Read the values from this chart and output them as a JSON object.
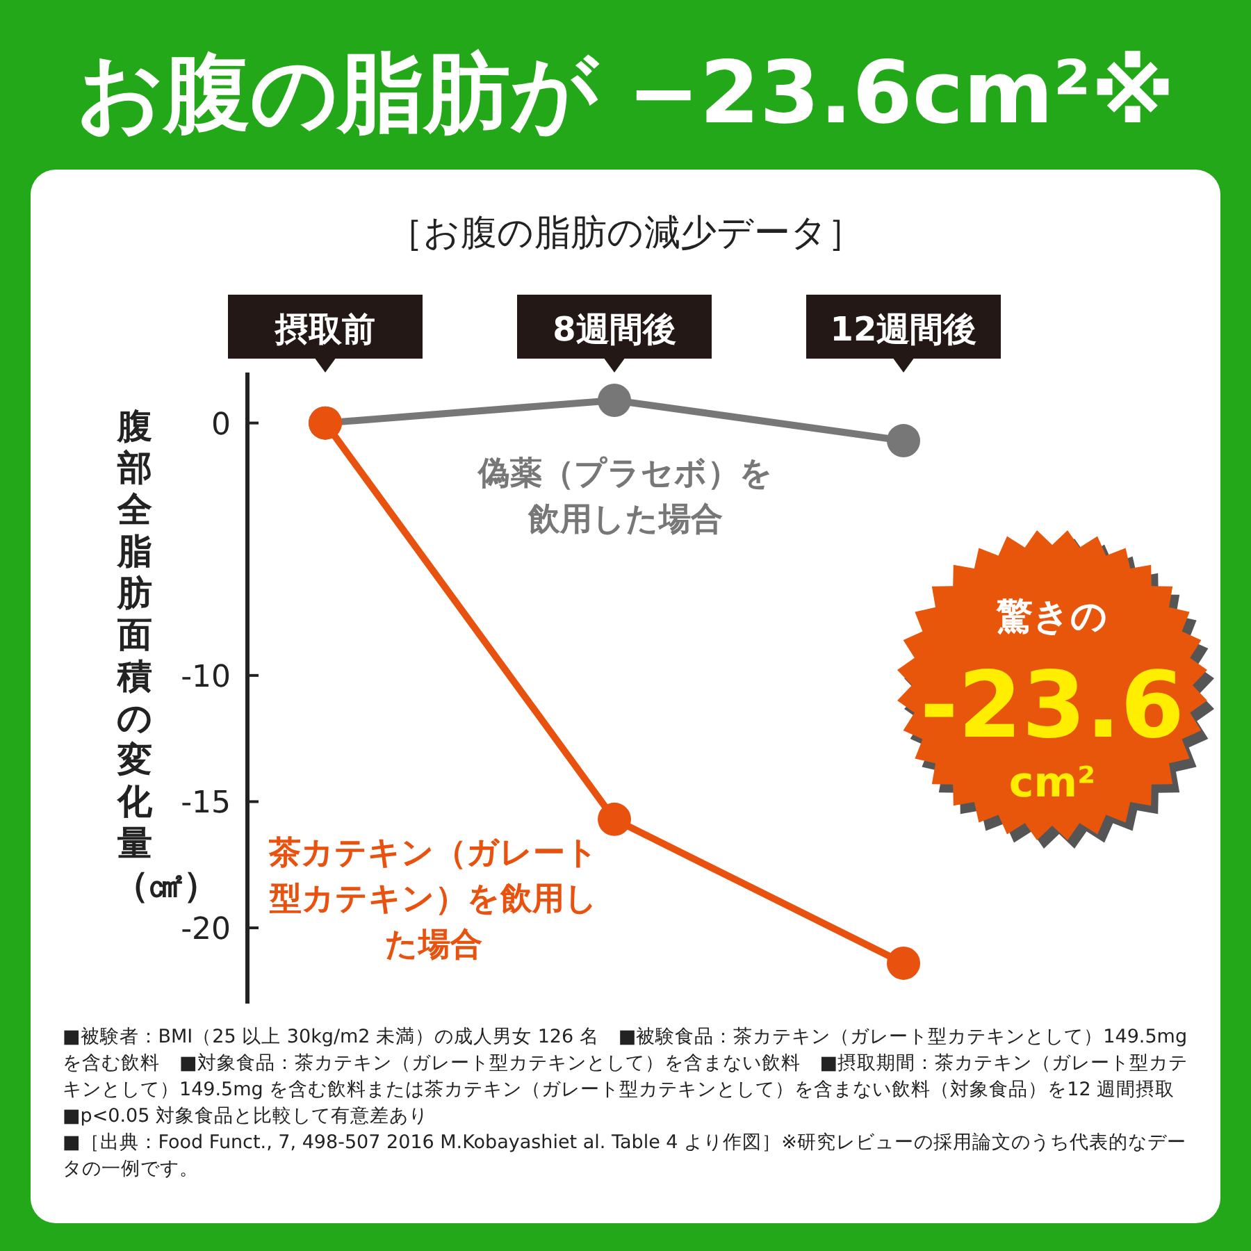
{
  "chart_data": {
    "type": "line",
    "title": "お腹の脂肪が −23.6cm²※",
    "subtitle": "［お腹の脂肪の減少データ］",
    "ylabel": "腹部全脂肪面積の変化量（㎠）",
    "categories": [
      "摂取前",
      "8週間後",
      "12週間後"
    ],
    "series": [
      {
        "name": "偽薬（プラセボ）を飲用した場合",
        "color": "#777777",
        "values": [
          0,
          0.9,
          -0.7
        ]
      },
      {
        "name": "茶カテキン（ガレート型カテキン）を飲用した場合",
        "color": "#e8520e",
        "values": [
          0,
          -15.7,
          -21.4
        ]
      }
    ],
    "ylim": [
      -23,
      2
    ],
    "yticks": [
      0,
      -10,
      -15,
      -20
    ],
    "grid": false,
    "legend": false,
    "marker": "circle",
    "line_style": "solid",
    "annotations": [
      "驚きの",
      "-23.6",
      "cm²",
      "■被験者：BMI（25 以上 30kg/m2 未満）の成人男女 126 名　■被験食品：茶カテキン（ガレート型カテキンとして）149.5mgを含む飲料　■対象食品：茶カテキン（ガレート型カテキンとして）を含まない飲料　■摂取期間：茶カテキン（ガレート型カテキンとして）149.5mg を含む飲料または茶カテキン（ガレート型カテキンとして）を含まない飲料（対象食品）を12 週間摂取　■p<0.05 対象食品と比較して有意差あり",
      "■［出典：Food Funct., 7, 498-507 2016 M.Kobayashiet al. Table 4 より作図］※研究レビューの採用論文のうち代表的なデータの一例です。"
    ]
  }
}
